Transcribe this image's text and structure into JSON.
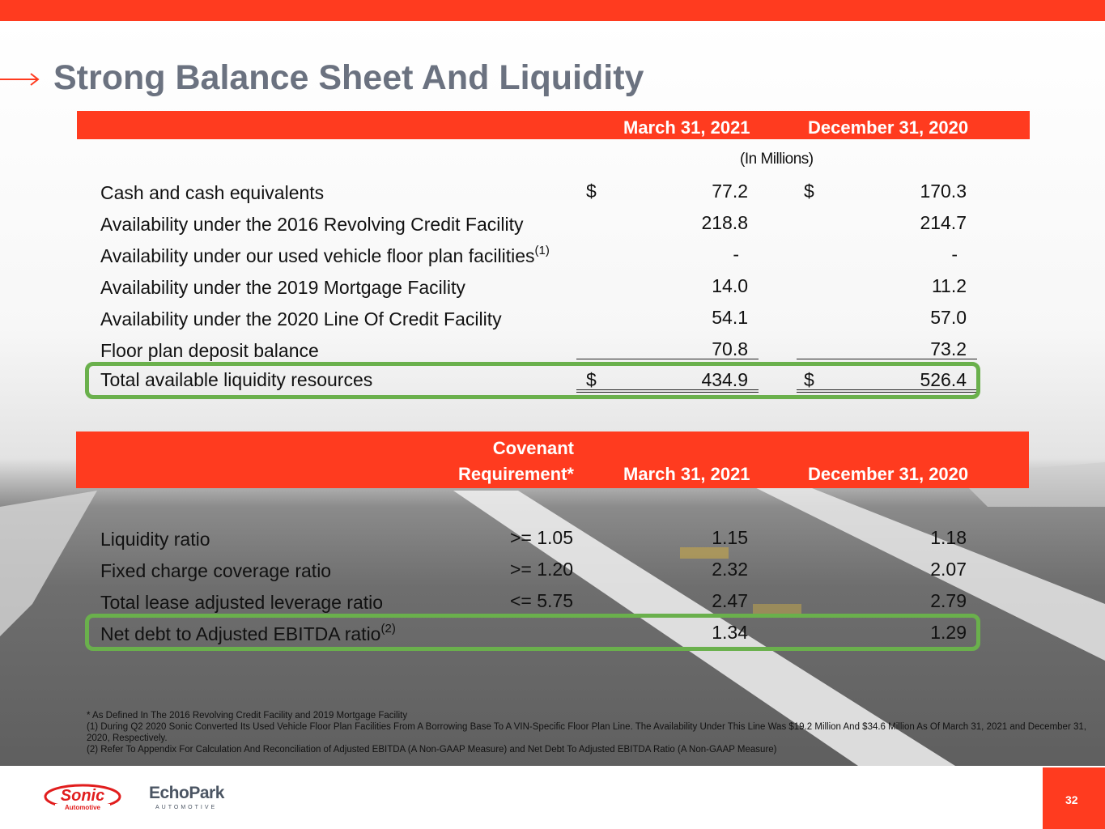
{
  "title": "Strong Balance Sheet And Liquidity",
  "colors": {
    "accent": "#ff3b1f",
    "highlight": "#6ab04c",
    "title": "#6b7280"
  },
  "liquidity_table": {
    "headers": [
      "March 31, 2021",
      "December 31, 2020"
    ],
    "units": "(In Millions)",
    "rows": [
      {
        "label": "Cash and cash equivalents",
        "sup": "",
        "cur1": "$",
        "v1": "77.2",
        "cur2": "$",
        "v2": "170.3"
      },
      {
        "label": "Availability under the 2016 Revolving Credit Facility",
        "sup": "",
        "cur1": "",
        "v1": "218.8",
        "cur2": "",
        "v2": "214.7"
      },
      {
        "label": "Availability under our used vehicle floor plan facilities",
        "sup": "(1)",
        "cur1": "",
        "v1": "-",
        "cur2": "",
        "v2": "-"
      },
      {
        "label": "Availability under the 2019 Mortgage Facility",
        "sup": "",
        "cur1": "",
        "v1": "14.0",
        "cur2": "",
        "v2": "11.2"
      },
      {
        "label": "Availability under the 2020 Line Of Credit Facility",
        "sup": "",
        "cur1": "",
        "v1": "54.1",
        "cur2": "",
        "v2": "57.0"
      },
      {
        "label": "Floor plan deposit balance",
        "sup": "",
        "cur1": "",
        "v1": "70.8",
        "cur2": "",
        "v2": "73.2"
      }
    ],
    "total": {
      "label": "Total available liquidity resources",
      "cur1": "$",
      "v1": "434.9",
      "cur2": "$",
      "v2": "526.4"
    }
  },
  "covenant_table": {
    "headers": [
      "Covenant",
      "Requirement*",
      "March 31, 2021",
      "December 31, 2020"
    ],
    "rows": [
      {
        "label": "Liquidity ratio",
        "sup": "",
        "req": ">= 1.05",
        "v1": "1.15",
        "v2": "1.18"
      },
      {
        "label": "Fixed charge coverage ratio",
        "sup": "",
        "req": ">= 1.20",
        "v1": "2.32",
        "v2": "2.07"
      },
      {
        "label": "Total lease adjusted leverage ratio",
        "sup": "",
        "req": "<= 5.75",
        "v1": "2.47",
        "v2": "2.79"
      },
      {
        "label": "Net debt to Adjusted EBITDA ratio",
        "sup": "(2)",
        "req": "",
        "v1": "1.34",
        "v2": "1.29"
      }
    ]
  },
  "footnotes": [
    "* As Defined In The 2016 Revolving Credit Facility and 2019 Mortgage Facility",
    "(1) During Q2 2020 Sonic Converted Its Used Vehicle Floor Plan Facilities From A Borrowing Base To A VIN-Specific Floor Plan Line. The Availability Under This Line Was $19.2 Million And $34.6 Million As Of March 31, 2021 and December 31, 2020, Respectively.",
    "(2) Refer To Appendix For Calculation And Reconciliation of Adjusted EBITDA (A Non-GAAP Measure) and Net Debt To Adjusted EBITDA Ratio (A Non-GAAP Measure)"
  ],
  "footer": {
    "logo_sonic": "Sonic",
    "logo_sonic_sub": "Automotive",
    "logo_echo": "EchoPark",
    "logo_echo_sub": "AUTOMOTIVE",
    "page_number": "32"
  }
}
